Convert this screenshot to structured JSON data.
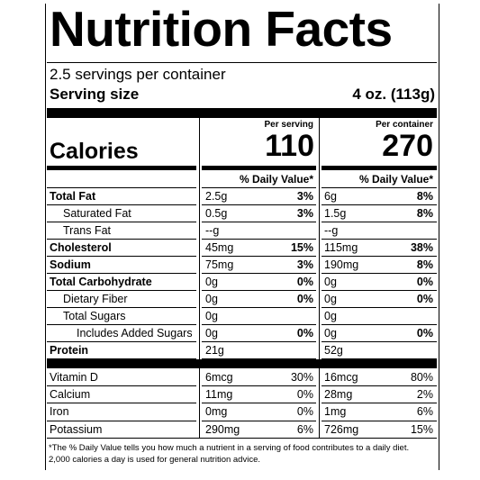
{
  "title": "Nutrition Facts",
  "servings": "2.5 servings per container",
  "serving_size": {
    "label": "Serving size",
    "value": "4 oz. (113g)"
  },
  "calories": {
    "label": "Calories",
    "per_serving_header": "Per serving",
    "per_container_header": "Per container",
    "per_serving": "110",
    "per_container": "270"
  },
  "daily_value_header": "% Daily Value*",
  "nutrients": [
    {
      "name": "Total Fat",
      "serving": {
        "amount": "2.5g",
        "dv": "3%"
      },
      "container": {
        "amount": "6g",
        "dv": "8%"
      }
    },
    {
      "name": "Saturated Fat",
      "serving": {
        "amount": "0.5g",
        "dv": "3%"
      },
      "container": {
        "amount": "1.5g",
        "dv": "8%"
      }
    },
    {
      "name": "Trans Fat",
      "serving": {
        "amount": "--g"
      },
      "container": {
        "amount": "--g"
      }
    },
    {
      "name": "Cholesterol",
      "serving": {
        "amount": "45mg",
        "dv": "15%"
      },
      "container": {
        "amount": "115mg",
        "dv": "38%"
      }
    },
    {
      "name": "Sodium",
      "serving": {
        "amount": "75mg",
        "dv": "3%"
      },
      "container": {
        "amount": "190mg",
        "dv": "8%"
      }
    },
    {
      "name": "Total Carbohydrate",
      "serving": {
        "amount": "0g",
        "dv": "0%"
      },
      "container": {
        "amount": "0g",
        "dv": "0%"
      }
    },
    {
      "name": "Dietary Fiber",
      "serving": {
        "amount": "0g",
        "dv": "0%"
      },
      "container": {
        "amount": "0g",
        "dv": "0%"
      }
    },
    {
      "name": "Total Sugars",
      "serving": {
        "amount": "0g"
      },
      "container": {
        "amount": "0g"
      }
    },
    {
      "name": "Includes Added Sugars",
      "serving": {
        "amount": "0g",
        "dv": "0%"
      },
      "container": {
        "amount": "0g",
        "dv": "0%"
      }
    },
    {
      "name": "Protein",
      "serving": {
        "amount": "21g"
      },
      "container": {
        "amount": "52g"
      }
    }
  ],
  "vitamins": [
    {
      "name": "Vitamin D",
      "serving": {
        "amount": "6mcg",
        "dv": "30%"
      },
      "container": {
        "amount": "16mcg",
        "dv": "80%"
      }
    },
    {
      "name": "Calcium",
      "serving": {
        "amount": "11mg",
        "dv": "0%"
      },
      "container": {
        "amount": "28mg",
        "dv": "2%"
      }
    },
    {
      "name": "Iron",
      "serving": {
        "amount": "0mg",
        "dv": "0%"
      },
      "container": {
        "amount": "1mg",
        "dv": "6%"
      }
    },
    {
      "name": "Potassium",
      "serving": {
        "amount": "290mg",
        "dv": "6%"
      },
      "container": {
        "amount": "726mg",
        "dv": "15%"
      }
    }
  ],
  "footnote": [
    "*The % Daily Value tells you how much a nutrient in a serving of food contributes to a daily diet.",
    "2,000 calories a day is used for general nutrition advice."
  ]
}
